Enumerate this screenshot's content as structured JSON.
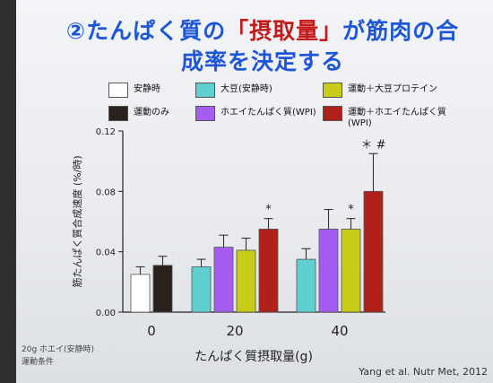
{
  "slide": {
    "title_num": "②",
    "title_part1": "たんぱく質の",
    "title_highlight": "「摂取量」",
    "title_part2": "が筋肉の合",
    "title_line2": "成率を決定する",
    "citation": "Yang et al. Nutr Met, 2012",
    "footnote1": "20g ホエイ(安静時)",
    "footnote2": "運動条件"
  },
  "chart_data": {
    "type": "bar",
    "xlabel": "たんぱく質摂取量(g)",
    "ylabel": "筋たんぱく質合成速度 (%/時)",
    "ylim": [
      0,
      0.12
    ],
    "yticks": [
      "0.00",
      "0.04",
      "0.08",
      "0.12"
    ],
    "groups": [
      {
        "label": "0",
        "bars": [
          {
            "series": 0,
            "value": 0.025,
            "err": 0.005
          },
          {
            "series": 1,
            "value": 0.031,
            "err": 0.006
          }
        ]
      },
      {
        "label": "20",
        "bars": [
          {
            "series": 2,
            "value": 0.03,
            "err": 0.005
          },
          {
            "series": 3,
            "value": 0.043,
            "err": 0.008
          },
          {
            "series": 4,
            "value": 0.041,
            "err": 0.008
          },
          {
            "series": 5,
            "value": 0.055,
            "err": 0.007,
            "mark": "*"
          }
        ]
      },
      {
        "label": "40",
        "bars": [
          {
            "series": 2,
            "value": 0.035,
            "err": 0.007
          },
          {
            "series": 3,
            "value": 0.055,
            "err": 0.013
          },
          {
            "series": 4,
            "value": 0.055,
            "err": 0.007,
            "mark": "*"
          },
          {
            "series": 5,
            "value": 0.08,
            "err": 0.025,
            "mark": "＊ #"
          }
        ]
      }
    ],
    "series": [
      {
        "name": "安静時",
        "color": "#ffffff"
      },
      {
        "name": "運動のみ",
        "color": "#2b211c"
      },
      {
        "name": "大豆(安静時)",
        "color": "#5fd0cf"
      },
      {
        "name": "ホエイたんぱく質(WPI)",
        "color": "#a55cf0"
      },
      {
        "name": "運動＋大豆プロテイン",
        "color": "#c9cc16"
      },
      {
        "name": "運動＋ホエイたんぱく質(WPI)",
        "color": "#b0211b"
      }
    ]
  }
}
